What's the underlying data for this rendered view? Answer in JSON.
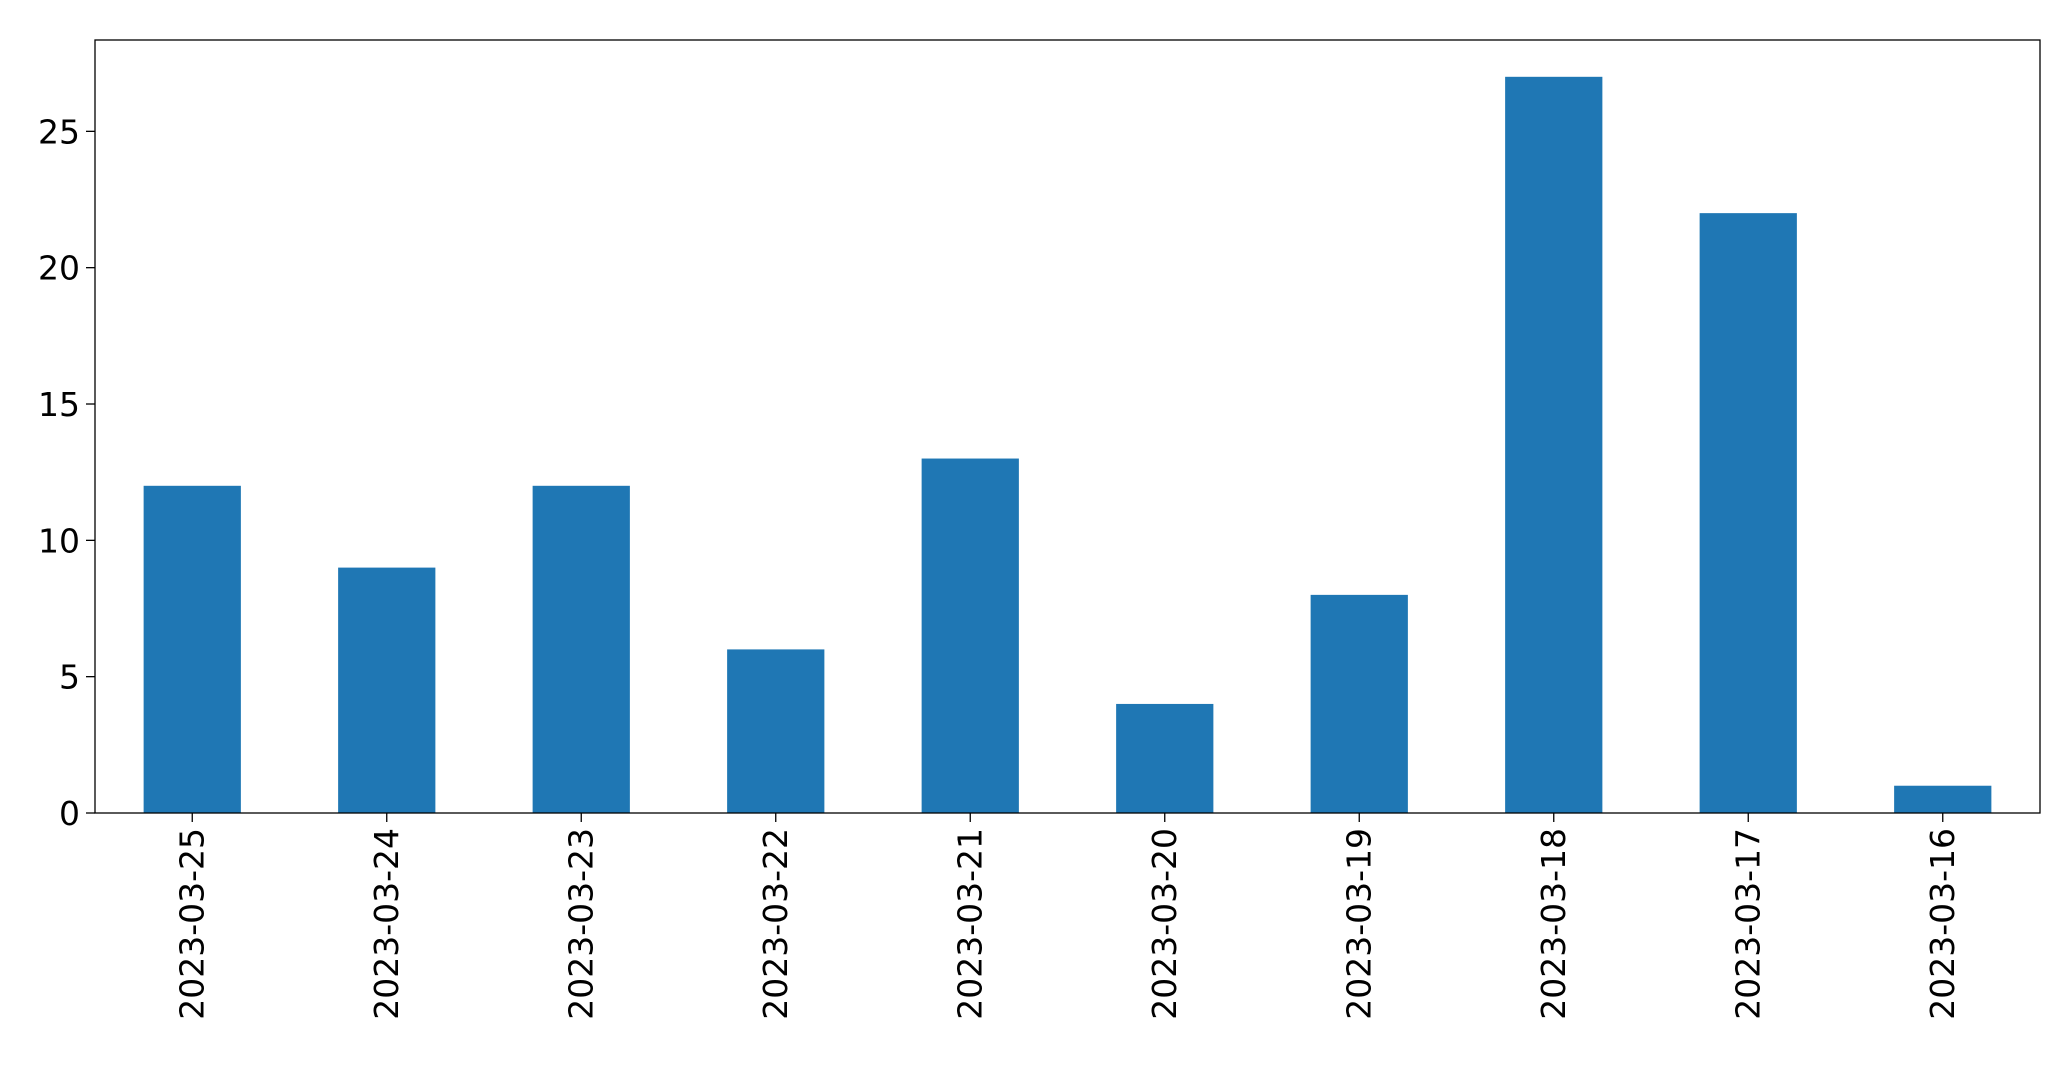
{
  "chart_data": {
    "type": "bar",
    "categories": [
      "2023-03-25",
      "2023-03-24",
      "2023-03-23",
      "2023-03-22",
      "2023-03-21",
      "2023-03-20",
      "2023-03-19",
      "2023-03-18",
      "2023-03-17",
      "2023-03-16"
    ],
    "values": [
      12,
      9,
      12,
      6,
      13,
      4,
      8,
      27,
      22,
      1
    ],
    "title": "",
    "xlabel": "",
    "ylabel": "",
    "ylim": [
      0,
      28.35
    ],
    "yticks": [
      0,
      5,
      10,
      15,
      20,
      25
    ],
    "grid": false,
    "bar_color": "#1f77b4"
  }
}
